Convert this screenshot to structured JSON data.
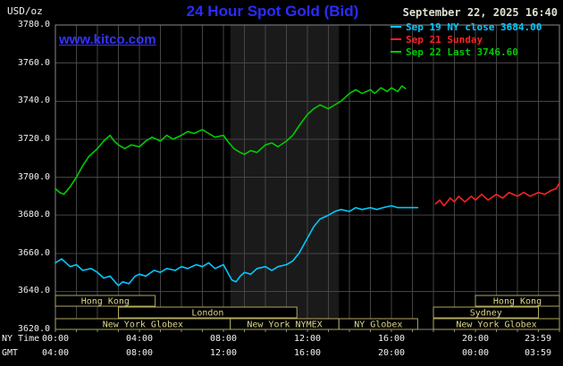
{
  "header": {
    "units": "USD/oz",
    "title": "24 Hour Spot Gold (Bid)",
    "datetime": "September 22, 2025 16:40",
    "watermark": "www.kitco.com",
    "legend": [
      {
        "id": "sep19",
        "label": "Sep 19 NY close 3684.00",
        "color": "#00c8ff"
      },
      {
        "id": "sep21",
        "label": "Sep 21 Sunday",
        "color": "#ff2222"
      },
      {
        "id": "sep22",
        "label": "Sep 22 Last 3746.60",
        "color": "#00cc00"
      }
    ]
  },
  "colors": {
    "background": "#000000",
    "grid": "#454545",
    "frame": "#888888",
    "band": "#1a1a1a",
    "axis_text": "#f0f0f0",
    "session_border": "#b0a95e",
    "session_text": "#ddd68a"
  },
  "axes": {
    "y_ticks": [
      "3780.0",
      "3760.0",
      "3740.0",
      "3720.0",
      "3700.0",
      "3680.0",
      "3660.0",
      "3640.0",
      "3620.0"
    ],
    "ny_time_label": "NY Time",
    "gmt_label": "GMT",
    "tick_hours": [
      0,
      4,
      8,
      12,
      16,
      20,
      23.983
    ],
    "ny_ticks": [
      "00:00",
      "04:00",
      "08:00",
      "12:00",
      "16:00",
      "20:00",
      "23:59"
    ],
    "gmt_ticks": [
      "04:00",
      "08:00",
      "12:00",
      "16:00",
      "20:00",
      "00:00",
      "03:59"
    ]
  },
  "sessions": [
    {
      "label": "Hong Kong",
      "row": 0,
      "start": 0,
      "end": 4.75
    },
    {
      "label": "Hong Kong",
      "row": 0,
      "start": 20,
      "end": 24
    },
    {
      "label": "London",
      "row": 1,
      "start": 3,
      "end": 11.5
    },
    {
      "label": "Sydney",
      "row": 1,
      "start": 18,
      "end": 23
    },
    {
      "label": "New York Globex",
      "row": 2,
      "start": 0,
      "end": 8.33
    },
    {
      "label": "New York NYMEX",
      "row": 2,
      "start": 8.33,
      "end": 13.5
    },
    {
      "label": "NY Globex",
      "row": 2,
      "start": 13.5,
      "end": 17.25
    },
    {
      "label": "New York Globex",
      "row": 2,
      "start": 18,
      "end": 24
    }
  ],
  "chart_data": {
    "type": "line",
    "title": "24 Hour Spot Gold (Bid)",
    "ylabel": "USD/oz",
    "ylim": [
      3620,
      3780
    ],
    "y_gridline_step": 20,
    "xlim_hours": [
      0,
      24
    ],
    "x_gridline_step_hours": 1,
    "highlight_band_hours": [
      8.33,
      13.5
    ],
    "series": [
      {
        "id": "sep19",
        "name": "Sep 19 NY close 3684.00",
        "color": "#00c8ff",
        "points": [
          [
            0,
            3655
          ],
          [
            0.3,
            3657
          ],
          [
            0.7,
            3653
          ],
          [
            1,
            3654
          ],
          [
            1.3,
            3651
          ],
          [
            1.7,
            3652
          ],
          [
            2,
            3650
          ],
          [
            2.3,
            3647
          ],
          [
            2.6,
            3648
          ],
          [
            3,
            3643
          ],
          [
            3.2,
            3645
          ],
          [
            3.5,
            3644
          ],
          [
            3.8,
            3648
          ],
          [
            4,
            3649
          ],
          [
            4.3,
            3648
          ],
          [
            4.7,
            3651
          ],
          [
            5,
            3650
          ],
          [
            5.3,
            3652
          ],
          [
            5.7,
            3651
          ],
          [
            6,
            3653
          ],
          [
            6.3,
            3652
          ],
          [
            6.7,
            3654
          ],
          [
            7,
            3653
          ],
          [
            7.3,
            3655
          ],
          [
            7.6,
            3652
          ],
          [
            8,
            3654
          ],
          [
            8.2,
            3650
          ],
          [
            8.4,
            3646
          ],
          [
            8.6,
            3645
          ],
          [
            8.8,
            3648
          ],
          [
            9,
            3650
          ],
          [
            9.3,
            3649
          ],
          [
            9.6,
            3652
          ],
          [
            10,
            3653
          ],
          [
            10.3,
            3651
          ],
          [
            10.6,
            3653
          ],
          [
            11,
            3654
          ],
          [
            11.3,
            3656
          ],
          [
            11.6,
            3660
          ],
          [
            12,
            3668
          ],
          [
            12.3,
            3674
          ],
          [
            12.6,
            3678
          ],
          [
            13,
            3680
          ],
          [
            13.3,
            3682
          ],
          [
            13.6,
            3683
          ],
          [
            14,
            3682
          ],
          [
            14.3,
            3684
          ],
          [
            14.6,
            3683
          ],
          [
            15,
            3684
          ],
          [
            15.3,
            3683
          ],
          [
            15.6,
            3684
          ],
          [
            16,
            3685
          ],
          [
            16.3,
            3684
          ],
          [
            16.6,
            3684
          ],
          [
            17,
            3684
          ],
          [
            17.25,
            3684
          ]
        ]
      },
      {
        "id": "sep21",
        "name": "Sep 21 Sunday",
        "color": "#ff2222",
        "points": [
          [
            18.1,
            3686
          ],
          [
            18.3,
            3688
          ],
          [
            18.5,
            3685
          ],
          [
            18.8,
            3689
          ],
          [
            19,
            3687
          ],
          [
            19.2,
            3690
          ],
          [
            19.5,
            3687
          ],
          [
            19.8,
            3690
          ],
          [
            20,
            3688
          ],
          [
            20.3,
            3691
          ],
          [
            20.6,
            3688
          ],
          [
            21,
            3691
          ],
          [
            21.3,
            3689
          ],
          [
            21.6,
            3692
          ],
          [
            22,
            3690
          ],
          [
            22.3,
            3692
          ],
          [
            22.6,
            3690
          ],
          [
            23,
            3692
          ],
          [
            23.3,
            3691
          ],
          [
            23.6,
            3693
          ],
          [
            23.85,
            3694
          ],
          [
            24,
            3697
          ]
        ]
      },
      {
        "id": "sep22",
        "name": "Sep 22 Last 3746.60",
        "color": "#00cc00",
        "points": [
          [
            0,
            3694
          ],
          [
            0.2,
            3692
          ],
          [
            0.4,
            3691
          ],
          [
            0.7,
            3695
          ],
          [
            1,
            3700
          ],
          [
            1.3,
            3706
          ],
          [
            1.6,
            3711
          ],
          [
            2,
            3715
          ],
          [
            2.3,
            3719
          ],
          [
            2.6,
            3722
          ],
          [
            2.8,
            3719
          ],
          [
            3,
            3717
          ],
          [
            3.3,
            3715
          ],
          [
            3.6,
            3717
          ],
          [
            4,
            3716
          ],
          [
            4.3,
            3719
          ],
          [
            4.6,
            3721
          ],
          [
            5,
            3719
          ],
          [
            5.3,
            3722
          ],
          [
            5.6,
            3720
          ],
          [
            6,
            3722
          ],
          [
            6.3,
            3724
          ],
          [
            6.6,
            3723
          ],
          [
            7,
            3725
          ],
          [
            7.3,
            3723
          ],
          [
            7.6,
            3721
          ],
          [
            8,
            3722
          ],
          [
            8.2,
            3719
          ],
          [
            8.5,
            3715
          ],
          [
            8.8,
            3713
          ],
          [
            9,
            3712
          ],
          [
            9.3,
            3714
          ],
          [
            9.6,
            3713
          ],
          [
            10,
            3717
          ],
          [
            10.3,
            3718
          ],
          [
            10.6,
            3716
          ],
          [
            11,
            3719
          ],
          [
            11.3,
            3722
          ],
          [
            11.6,
            3727
          ],
          [
            12,
            3733
          ],
          [
            12.3,
            3736
          ],
          [
            12.6,
            3738
          ],
          [
            13,
            3736
          ],
          [
            13.3,
            3738
          ],
          [
            13.6,
            3740
          ],
          [
            14,
            3744
          ],
          [
            14.3,
            3746
          ],
          [
            14.6,
            3744
          ],
          [
            15,
            3746
          ],
          [
            15.2,
            3744
          ],
          [
            15.5,
            3747
          ],
          [
            15.8,
            3745
          ],
          [
            16,
            3747
          ],
          [
            16.3,
            3745
          ],
          [
            16.5,
            3748
          ],
          [
            16.67,
            3746.6
          ]
        ]
      }
    ]
  }
}
